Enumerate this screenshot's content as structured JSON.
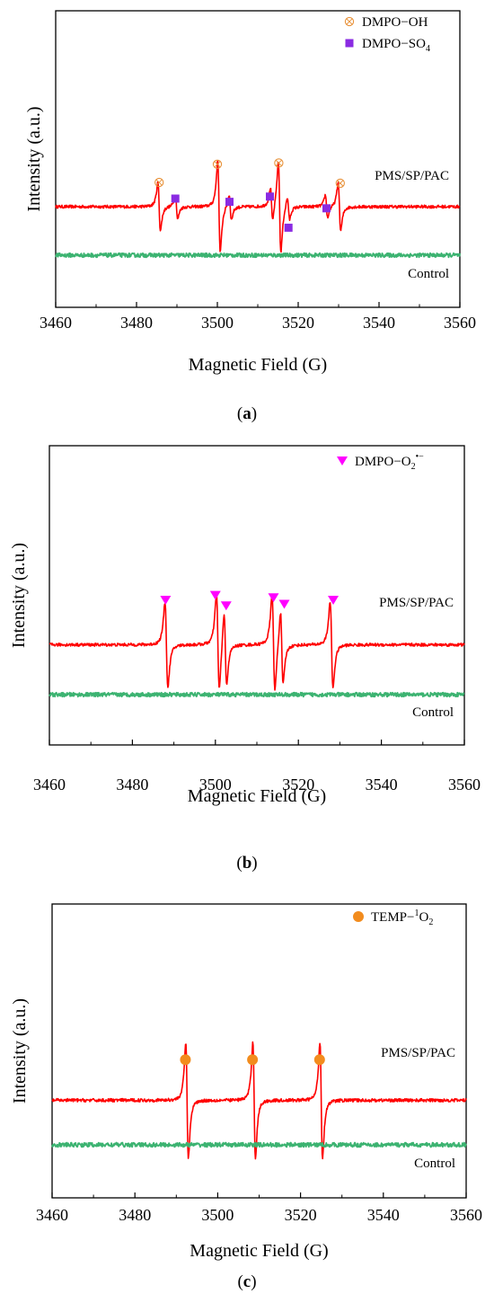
{
  "figure": {
    "panels": [
      "(a)",
      "(b)",
      "(c)"
    ]
  },
  "chart_data": [
    {
      "type": "line",
      "panel_label": "a",
      "xlabel": "Magnetic Field (G)",
      "ylabel": "Intensity (a.u.)",
      "xlim": [
        3460,
        3560
      ],
      "x_ticks": [
        3460,
        3480,
        3500,
        3520,
        3540,
        3560
      ],
      "grid": false,
      "legend_position": "top-right",
      "legend": [
        {
          "marker": "circle-x",
          "color": "#e8923a",
          "label_main": "DMPO−OH",
          "label_sub": "",
          "label_sup": ""
        },
        {
          "marker": "square",
          "color": "#8a2be2",
          "label_main": "DMPO−SO",
          "label_sub": "4",
          "label_sup": ""
        }
      ],
      "series": [
        {
          "name": "PMS/SP/PAC",
          "color": "#ff0000",
          "baseline": 0.72,
          "peaks": [
            {
              "center": 3485.6,
              "amp": 0.42,
              "width": 0.55
            },
            {
              "center": 3489.9,
              "amp": 0.22,
              "width": 0.5
            },
            {
              "center": 3500.4,
              "amp": 0.8,
              "width": 0.55
            },
            {
              "center": 3503.2,
              "amp": 0.22,
              "width": 0.5
            },
            {
              "center": 3513.4,
              "amp": 0.3,
              "width": 0.5
            },
            {
              "center": 3515.4,
              "amp": 0.8,
              "width": 0.55
            },
            {
              "center": 3517.6,
              "amp": 0.2,
              "width": 0.5
            },
            {
              "center": 3527.0,
              "amp": 0.2,
              "width": 0.5
            },
            {
              "center": 3530.2,
              "amp": 0.42,
              "width": 0.55
            }
          ]
        },
        {
          "name": "Control",
          "color": "#3cb371",
          "baseline": 0.0,
          "peaks": []
        }
      ],
      "markers": [
        {
          "type": "circle-x",
          "x": 3485.6,
          "level": 1.32
        },
        {
          "type": "circle-x",
          "x": 3500.0,
          "level": 1.77
        },
        {
          "type": "circle-x",
          "x": 3515.2,
          "level": 1.8
        },
        {
          "type": "circle-x",
          "x": 3530.4,
          "level": 1.3
        },
        {
          "type": "square",
          "x": 3489.6,
          "level": 0.92
        },
        {
          "type": "square",
          "x": 3503.0,
          "level": 0.84
        },
        {
          "type": "square",
          "x": 3513.0,
          "level": 0.97
        },
        {
          "type": "square",
          "x": 3517.6,
          "level": 0.2
        },
        {
          "type": "square",
          "x": 3527.0,
          "level": 0.68
        }
      ]
    },
    {
      "type": "line",
      "panel_label": "b",
      "xlabel": "Magnetic Field (G)",
      "ylabel": "Intensity (a.u.)",
      "xlim": [
        3460,
        3560
      ],
      "x_ticks": [
        3460,
        3480,
        3500,
        3520,
        3540,
        3560
      ],
      "grid": false,
      "legend_position": "top-right",
      "legend": [
        {
          "marker": "triangle-down",
          "color": "#ff00ff",
          "label_main": "DMPO−O",
          "label_sub": "2",
          "label_sup": "•−"
        }
      ],
      "series": [
        {
          "name": "PMS/SP/PAC",
          "color": "#ff0000",
          "baseline": 0.74,
          "peaks": [
            {
              "center": 3488.2,
              "amp": 0.75,
              "width": 0.6
            },
            {
              "center": 3500.6,
              "amp": 0.85,
              "width": 0.6
            },
            {
              "center": 3502.4,
              "amp": 0.65,
              "width": 0.55
            },
            {
              "center": 3514.0,
              "amp": 0.85,
              "width": 0.6
            },
            {
              "center": 3516.0,
              "amp": 0.65,
              "width": 0.55
            },
            {
              "center": 3528.0,
              "amp": 0.75,
              "width": 0.6
            }
          ]
        },
        {
          "name": "Control",
          "color": "#3cb371",
          "baseline": 0.0,
          "peaks": []
        }
      ],
      "markers": [
        {
          "type": "triangle-down",
          "x": 3488.0,
          "level": 1.84
        },
        {
          "type": "triangle-down",
          "x": 3500.0,
          "level": 1.96
        },
        {
          "type": "triangle-down",
          "x": 3502.6,
          "level": 1.7
        },
        {
          "type": "triangle-down",
          "x": 3514.0,
          "level": 1.9
        },
        {
          "type": "triangle-down",
          "x": 3516.6,
          "level": 1.74
        },
        {
          "type": "triangle-down",
          "x": 3528.4,
          "level": 1.84
        }
      ]
    },
    {
      "type": "line",
      "panel_label": "c",
      "xlabel": "Magnetic Field (G)",
      "ylabel": "Intensity (a.u.)",
      "xlim": [
        3460,
        3560
      ],
      "x_ticks": [
        3460,
        3480,
        3500,
        3520,
        3540,
        3560
      ],
      "grid": false,
      "legend_position": "top-right",
      "legend": [
        {
          "marker": "circle",
          "color": "#f28c1e",
          "label_main": "TEMP−",
          "label_sub": "2",
          "label_sup": "1",
          "label_mid": "O"
        }
      ],
      "series": [
        {
          "name": "PMS/SP/PAC",
          "color": "#ff0000",
          "baseline": 0.62,
          "peaks": [
            {
              "center": 3492.6,
              "amp": 0.95,
              "width": 0.55
            },
            {
              "center": 3508.8,
              "amp": 0.95,
              "width": 0.55
            },
            {
              "center": 3525.0,
              "amp": 0.95,
              "width": 0.55
            }
          ]
        },
        {
          "name": "Control",
          "color": "#3cb371",
          "baseline": 0.0,
          "peaks": []
        }
      ],
      "markers": [
        {
          "type": "circle",
          "x": 3492.2,
          "level": 1.56
        },
        {
          "type": "circle",
          "x": 3508.4,
          "level": 1.56
        },
        {
          "type": "circle",
          "x": 3524.6,
          "level": 1.56
        }
      ]
    }
  ]
}
